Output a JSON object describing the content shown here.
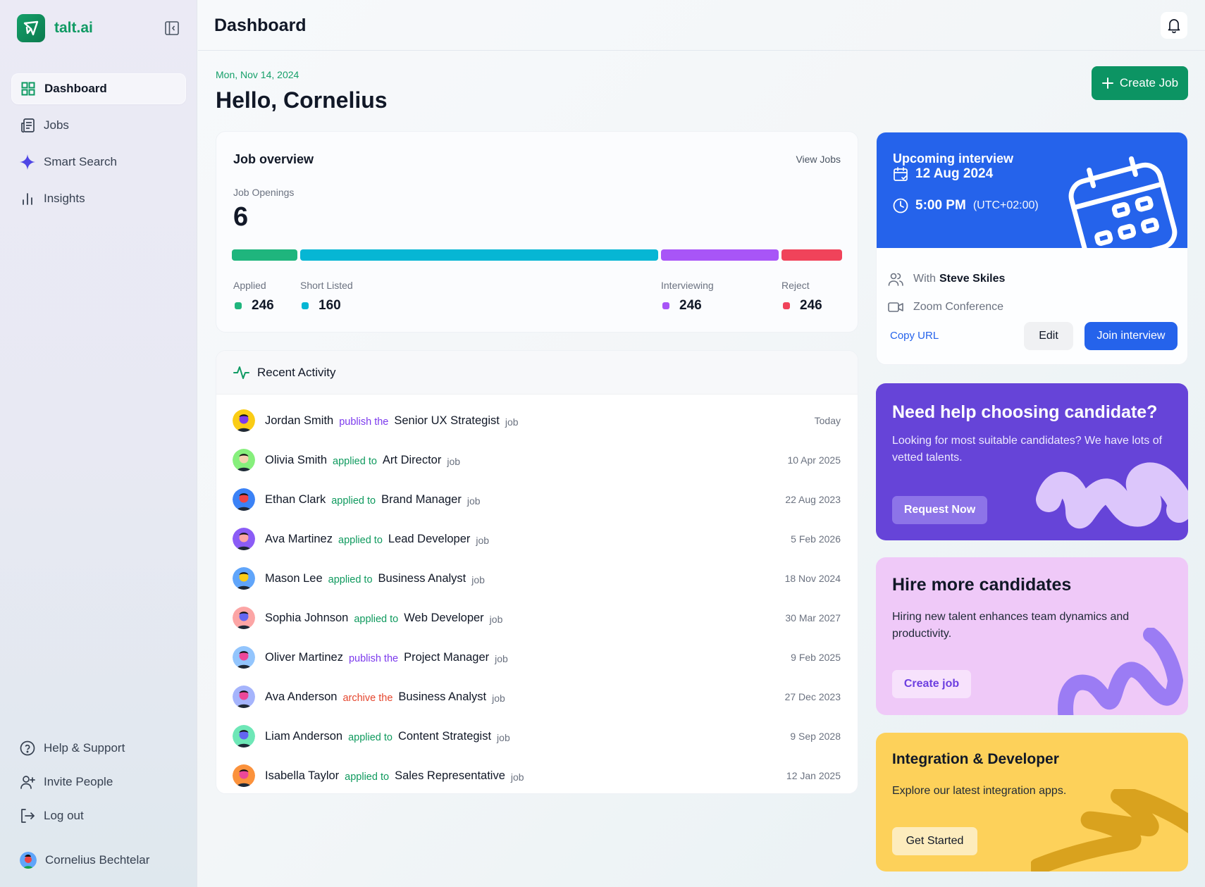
{
  "brand": {
    "name": "talt.ai",
    "color": "#0f9a63"
  },
  "sidebar": {
    "items": [
      {
        "label": "Dashboard",
        "icon": "grid-icon",
        "active": true
      },
      {
        "label": "Jobs",
        "icon": "newspaper-icon"
      },
      {
        "label": "Smart Search",
        "icon": "sparkle-icon"
      },
      {
        "label": "Insights",
        "icon": "bar-chart-icon"
      }
    ],
    "bottom_items": [
      {
        "label": "Help & Support",
        "icon": "help-circle-icon"
      },
      {
        "label": "Invite People",
        "icon": "user-plus-icon"
      },
      {
        "label": "Log out",
        "icon": "logout-icon"
      }
    ],
    "user": {
      "name": "Cornelius Bechtelar"
    }
  },
  "header": {
    "title": "Dashboard"
  },
  "greeting": {
    "date": "Mon, Nov 14, 2024",
    "hello": "Hello, Cornelius"
  },
  "actions": {
    "create_job": "Create Job"
  },
  "job_overview": {
    "title": "Job overview",
    "view_link": "View Jobs",
    "openings_label": "Job Openings",
    "openings_value": "6",
    "stats": [
      {
        "label": "Applied",
        "value": "246",
        "color": "#1fb57d"
      },
      {
        "label": "Short Listed",
        "value": "160",
        "color": "#06b6d4"
      },
      {
        "label": "Interviewing",
        "value": "246",
        "color": "#a855f7"
      },
      {
        "label": "Reject",
        "value": "246",
        "color": "#f0435a"
      }
    ]
  },
  "activity": {
    "title": "Recent Activity",
    "rows": [
      {
        "name": "Jordan Smith",
        "verb": "publish the",
        "verb_type": "purple",
        "role": "Senior UX Strategist",
        "suffix": "job",
        "when": "Today",
        "avatar_bg": "#facc15",
        "avatar_fg": "#7c3aed"
      },
      {
        "name": "Olivia Smith",
        "verb": "applied to",
        "verb_type": "green",
        "role": "Art Director",
        "suffix": "job",
        "when": "10 Apr 2025",
        "avatar_bg": "#86ef7c",
        "avatar_fg": "#f3d2b0"
      },
      {
        "name": "Ethan Clark",
        "verb": "applied to",
        "verb_type": "green",
        "role": "Brand Manager",
        "suffix": "job",
        "when": "22 Aug 2023",
        "avatar_bg": "#3b82f6",
        "avatar_fg": "#ef4444"
      },
      {
        "name": "Ava Martinez",
        "verb": "applied to",
        "verb_type": "green",
        "role": "Lead Developer",
        "suffix": "job",
        "when": "5 Feb 2026",
        "avatar_bg": "#8b5cf6",
        "avatar_fg": "#fca5a5"
      },
      {
        "name": "Mason Lee",
        "verb": "applied to",
        "verb_type": "green",
        "role": "Business Analyst",
        "suffix": "job",
        "when": "18 Nov 2024",
        "avatar_bg": "#60a5fa",
        "avatar_fg": "#facc15"
      },
      {
        "name": "Sophia Johnson",
        "verb": "applied to",
        "verb_type": "green",
        "role": "Web Developer",
        "suffix": "job",
        "when": "30 Mar 2027",
        "avatar_bg": "#fca5a5",
        "avatar_fg": "#6366f1"
      },
      {
        "name": "Oliver Martinez",
        "verb": "publish the",
        "verb_type": "purple",
        "role": "Project Manager",
        "suffix": "job",
        "when": "9 Feb 2025",
        "avatar_bg": "#93c5fd",
        "avatar_fg": "#ec4899"
      },
      {
        "name": "Ava Anderson",
        "verb": "archive the",
        "verb_type": "red",
        "role": "Business Analyst",
        "suffix": "job",
        "when": "27 Dec 2023",
        "avatar_bg": "#a5b4fc",
        "avatar_fg": "#ec4899"
      },
      {
        "name": "Liam Anderson",
        "verb": "applied to",
        "verb_type": "green",
        "role": "Content Strategist",
        "suffix": "job",
        "when": "9 Sep 2028",
        "avatar_bg": "#6ee7b7",
        "avatar_fg": "#6366f1"
      },
      {
        "name": "Isabella Taylor",
        "verb": "applied to",
        "verb_type": "green",
        "role": "Sales Representative",
        "suffix": "job",
        "when": "12 Jan 2025",
        "avatar_bg": "#fb923c",
        "avatar_fg": "#ec4899"
      }
    ]
  },
  "interview": {
    "title": "Upcoming interview",
    "date": "12 Aug 2024",
    "time": "5:00 PM",
    "timezone": "(UTC+02:00)",
    "with_label": "With",
    "with_name": "Steve Skiles",
    "platform": "Zoom Conference",
    "copy_url": "Copy URL",
    "edit": "Edit",
    "join": "Join interview",
    "color": "#2563eb"
  },
  "promos": [
    {
      "title": "Need help choosing candidate?",
      "desc": "Looking for most suitable candidates? We have lots of vetted talents.",
      "button": "Request Now"
    },
    {
      "title": "Hire more candidates",
      "desc": "Hiring new talent enhances team dynamics and productivity.",
      "button": "Create job"
    },
    {
      "title": "Integration & Developer",
      "desc": "Explore our latest integration apps.",
      "button": "Get Started"
    }
  ]
}
